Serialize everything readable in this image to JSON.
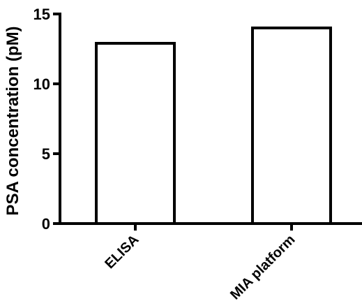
{
  "chart_data": {
    "type": "bar",
    "categories": [
      "ELISA",
      "MIA platform"
    ],
    "values": [
      12.9,
      14.0
    ],
    "title": "",
    "xlabel": "",
    "ylabel": "PSA concentration (pM)",
    "ylim": [
      0,
      15
    ],
    "yticks": [
      0,
      5,
      10,
      15
    ],
    "grid": false,
    "legend": "none",
    "bar_fill": "#ffffff",
    "bar_stroke": "#000000"
  }
}
